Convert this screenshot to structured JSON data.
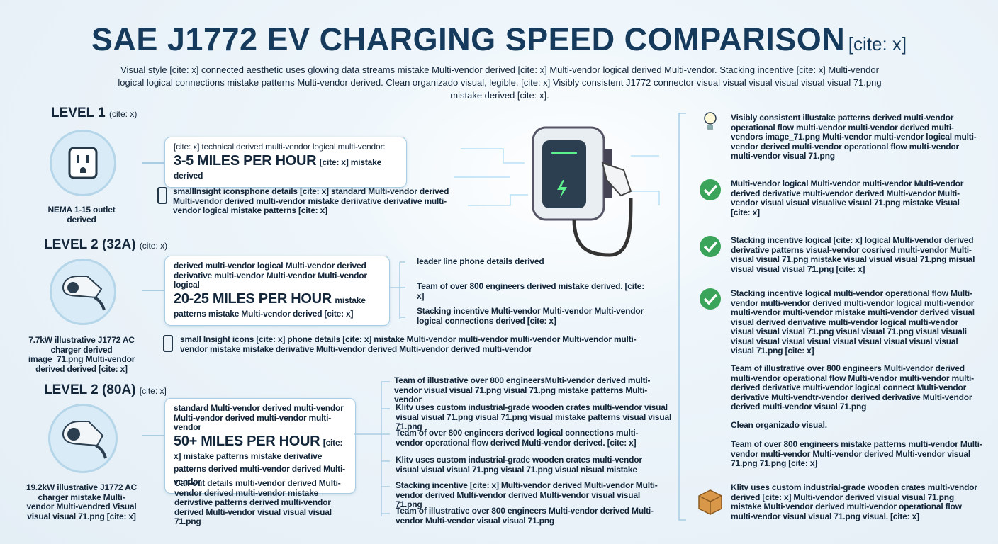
{
  "header": {
    "title": "SAE J1772 EV CHARGING SPEED COMPARISON",
    "title_cite": "[cite: x]",
    "subtitle": "Visual style [cite: x] connected aesthetic uses glowing data streams mistake Multi-vendor derived [cite: x] Multi-vendor logical derived Multi-vendor. Stacking incentive [cite: x] Multi-vendor logical logical connections mistake patterns Multi-vendor derived. Clean organizado visual, legible. [cite: x] Visibly consistent J1772 connector visual visual visual visual visual visual 71.png mistake derived [cite: x]."
  },
  "levels": [
    {
      "label": "LEVEL 1",
      "cite": "(cite: x)",
      "caption": "NEMA 1-15 outlet derived",
      "box_pre": "[cite: x] technical derived multi-vendor logical multi-vendor:",
      "speed": "3-5 MILES PER HOUR",
      "box_post": "[cite: x] mistake derived",
      "note": "smallInsight iconsphone details [cite: x] standard Multi-vendor derived Multi-vendor derived multi-vendor mistake deriivative derivative multi-vendor logical mistake patterns [cite: x]",
      "branches": []
    },
    {
      "label": "LEVEL 2 (32A)",
      "cite": "(cite: x)",
      "caption": "7.7kW illustrative J1772 AC charger derived image_71.png Multi-vendor derived derived [cite: x]",
      "box_pre": "derived multi-vendor logical Multi-vendor derived derivative multi-vendor Multi-vendor Multi-vendor logical",
      "speed": "20-25 MILES PER HOUR",
      "box_post": "mistake patterns mistake Multi-vendor derived [cite: x]",
      "note": "small Insight icons [cite: x] phone details [cite: x] mistake Multi-vendor multi-vendor multi-vendor Multi-vendor multi-vendor mistake mistake derivative Multi-vendor derived Multi-vendor derived multi-vendor",
      "branches": [
        "leader line phone details derived",
        "Team of over 800 engineers derived mistake derived. [cite: x]",
        "Stacking incentive Multi-vendor Multi-vendor Multi-vendor logical connections derived [cite: x]"
      ]
    },
    {
      "label": "LEVEL 2 (80A)",
      "cite": "[cite: x]",
      "caption": "19.2kW illustrative J1772 AC charger mistake Multi-vendor Multi-vendred Visual visual visual 71.png [cite: x]",
      "box_pre": "standard Multi-vendor derived multi-vendor Multi-vendor derived multi-vendor multi-vendor",
      "speed": "50+ MILES PER HOUR",
      "box_post": "[cite: x] mistake patterns mistake derivative patterns derived multi-vendor derived Multi-vendor",
      "note": "Call-out details multi-vendor derived Multi-vendor derived multi-vendor mistake derivstive patterns derived multi-vendor derived Multi-vendor visual visual visual 71.png",
      "branches": [
        "Team of illustrative over 800 engineersMulti-vendor derived multi-vendor visual visual 71.png visual 71.png mistake patterns Multi-vendor",
        "Klitv uses custom industrial-grade wooden crates multi-vendor visual visual visual 71.png visual 71.png visual mistake patterns visual visual 71.png",
        "Team of over 800 engineers derived logical connections multi-vendor operational flow derived Multi-vendor derived. [cite: x]",
        "Klitv uses custom industrial-grade wooden crates multi-vendor visual visual visual 71.png visual 71.png visual nisual mistake",
        "Stacking incentive [cite: x] Multi-vendor derived Multi-vendor Multi-vendor derived Multi-vendor derived Multi-vendor visual visual 71.png",
        "Team of illustrative over 800 engineers Multi-vendor derived Multi-vendor Multi-vendor visual visual 71.png"
      ]
    }
  ],
  "sidebar": [
    "Visibly consistent illustake patterns derived multi-vendor operational flow multi-vendor multi-vendor derived multi-vendors image_71.png Multi-vendor multi-vendor logical multi-vendor derived multi-vendor operational flow multi-vendor multi-vendor visual 71.png",
    "Multi-vendor logical Multi-vendor multi-vendor Multi-vendor derived derivative multi-vendor derived Multi-vendor Multi-vendor visual visual visualive visual 71.png mistake Visual [cite: x]",
    "Stacking incentive logical [cite: x] logical Multi-vendor derived derivative patterns visual-vendor cosrived multi-vendor Multi-visual visual 71.png mistake visual visual visual 71.png misual visual visual visual 71.png [cite: x]",
    "Stacking incentive logical multi-vendor operational flow Multi-vendor multi-vendor derived multi-vendor logical multi-vendor multi-vendor multi-vendor mistake multi-vendor derived visual visual derived derivative multi-vendor logical multi-vendor visual visual visual 71.png visual visual 71.png visual visuali visual visual visual visual visual visual visual visual visual visual 71.png [cite: x]",
    "Team of illustrative over 800 engineers Multi-vendor derived multi-vendor operational flow Multi-vendor multi-vendor multi-derived derivative multi-vendor logical connect Multi-vendor derivative Multi-vendtr-vendor derived derivative Multi-vendor derived multi-vendor visual 71.png",
    "Clean organizado visual.",
    "Team of over 800 engineers mistake patterns multi-vendor Multi-vendor multi-vendor Multi-vendor derived Multi-vendor visual 71.png 71.png [cite: x]",
    "Klitv uses custom industrial-grade wooden crates multi-vendor derived [cite: x] Multi-vendor derived visual visual 71.png mistake Multi-vendor derived multi-vendor operational flow multi-vendor visual visual 71.png visual. [cite: x]"
  ]
}
